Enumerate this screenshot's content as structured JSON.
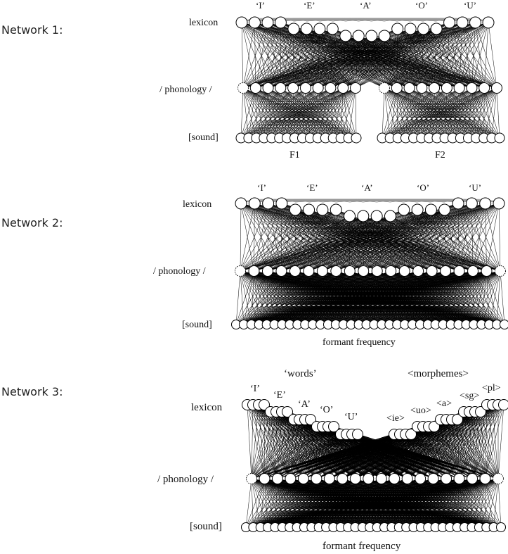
{
  "networks": [
    {
      "label": "Network 1:",
      "layers": {
        "lexicon": "lexicon",
        "phonology": "/ phonology /",
        "sound": "[sound]"
      },
      "vowels": [
        "‘I’",
        "‘E’",
        "‘A’",
        "‘O’",
        "‘U’"
      ],
      "formants": [
        "F1",
        "F2"
      ]
    },
    {
      "label": "Network 2:",
      "layers": {
        "lexicon": "lexicon",
        "phonology": "/ phonology /",
        "sound": "[sound]"
      },
      "vowels": [
        "‘I’",
        "‘E’",
        "‘A’",
        "‘O’",
        "‘U’"
      ],
      "axis_label": "formant frequency"
    },
    {
      "label": "Network 3:",
      "layers": {
        "lexicon": "lexicon",
        "phonology": "/ phonology /",
        "sound": "[sound]"
      },
      "group_words": "‘words’",
      "group_morphemes": "<morphemes>",
      "vowels": [
        "‘I’",
        "‘E’",
        "‘A’",
        "‘O’",
        "‘U’"
      ],
      "morphemes": [
        "<ie>",
        "<uo>",
        "<a>",
        "<sg>",
        "<pl>"
      ],
      "axis_label": "formant frequency"
    }
  ]
}
